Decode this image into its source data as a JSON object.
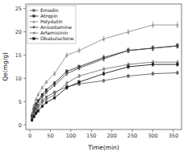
{
  "chart_data": {
    "type": "line",
    "xlabel": "Time(min)",
    "ylabel": "Qe(mg/g)",
    "x": [
      5,
      10,
      15,
      20,
      30,
      40,
      60,
      90,
      120,
      180,
      240,
      300,
      360
    ],
    "xlim": [
      -10,
      370
    ],
    "ylim": [
      -1,
      26
    ],
    "xticks": [
      0,
      50,
      100,
      150,
      200,
      250,
      300,
      350
    ],
    "yticks": [
      0,
      5,
      10,
      15,
      20,
      25
    ],
    "grid": false,
    "legend": "upper left",
    "series": [
      {
        "name": "Emodin",
        "color": "#606060",
        "marker": "square",
        "values": [
          1.5,
          2.8,
          3.5,
          4.2,
          5.2,
          6.0,
          7.0,
          8.2,
          8.8,
          9.5,
          10.5,
          11.0,
          11.2
        ],
        "errors": [
          0.25,
          0.25,
          0.25,
          0.25,
          0.25,
          0.25,
          0.25,
          0.35,
          0.35,
          0.35,
          0.35,
          0.35,
          0.35
        ]
      },
      {
        "name": "Atropin",
        "color": "#303030",
        "marker": "square",
        "values": [
          2.0,
          3.5,
          4.5,
          5.2,
          6.5,
          7.5,
          9.0,
          11.5,
          12.5,
          14.5,
          16.0,
          16.5,
          17.0
        ],
        "errors": [
          0.25,
          0.25,
          0.25,
          0.25,
          0.25,
          0.25,
          0.25,
          0.35,
          0.35,
          0.45,
          0.45,
          0.45,
          0.45
        ]
      },
      {
        "name": "Polydatin",
        "color": "#909090",
        "marker": "triangle-up",
        "values": [
          2.5,
          4.2,
          5.5,
          6.5,
          8.0,
          9.2,
          11.0,
          15.0,
          16.0,
          18.5,
          20.0,
          21.5,
          21.5
        ],
        "errors": [
          0.25,
          0.25,
          0.25,
          0.25,
          0.25,
          0.25,
          0.35,
          0.45,
          0.45,
          0.45,
          0.45,
          0.55,
          0.55
        ]
      },
      {
        "name": "Anisodamine",
        "color": "#484848",
        "marker": "triangle-down",
        "values": [
          1.8,
          3.2,
          4.2,
          5.0,
          6.0,
          7.0,
          8.5,
          11.0,
          12.2,
          14.2,
          16.0,
          16.5,
          17.0
        ],
        "errors": [
          0.25,
          0.25,
          0.25,
          0.25,
          0.25,
          0.25,
          0.25,
          0.35,
          0.35,
          0.45,
          0.45,
          0.45,
          0.45
        ]
      },
      {
        "name": "Artemisinin",
        "color": "#787878",
        "marker": "triangle-left",
        "values": [
          1.2,
          2.2,
          3.0,
          3.8,
          4.8,
          5.5,
          6.5,
          9.0,
          10.5,
          12.0,
          13.0,
          13.5,
          13.5
        ],
        "errors": [
          0.25,
          0.25,
          0.25,
          0.25,
          0.25,
          0.25,
          0.25,
          0.35,
          0.35,
          0.35,
          0.35,
          0.35,
          0.35
        ]
      },
      {
        "name": "Obakulactone",
        "color": "#181818",
        "marker": "square",
        "values": [
          1.0,
          1.8,
          2.5,
          3.0,
          4.0,
          4.8,
          5.8,
          8.0,
          9.2,
          11.0,
          12.5,
          13.0,
          13.0
        ],
        "errors": [
          0.25,
          0.25,
          0.25,
          0.25,
          0.25,
          0.25,
          0.25,
          0.35,
          0.35,
          0.35,
          0.35,
          0.35,
          0.35
        ]
      }
    ]
  }
}
